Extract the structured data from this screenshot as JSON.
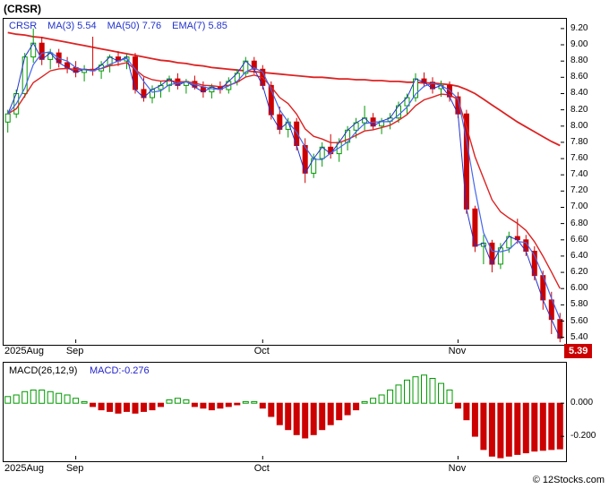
{
  "header": {
    "title": "(CRSR)"
  },
  "credit": "© 12Stocks.com",
  "price_panel": {
    "legend": [
      {
        "label": "CRSR",
        "value": "",
        "color": "#2233cc"
      },
      {
        "label": "MA(3)",
        "value": "5.54",
        "color": "#2233cc"
      },
      {
        "label": "MA(50)",
        "value": "7.76",
        "color": "#2233cc"
      },
      {
        "label": "EMA(7)",
        "value": "5.85",
        "color": "#2233cc"
      }
    ],
    "last_price_badge": "5.39",
    "y_ticks": [
      "9.20",
      "9.00",
      "8.80",
      "8.60",
      "8.40",
      "8.20",
      "8.00",
      "7.80",
      "7.60",
      "7.40",
      "7.20",
      "7.00",
      "6.80",
      "6.60",
      "6.40",
      "6.20",
      "6.00",
      "5.80",
      "5.60",
      "5.40"
    ]
  },
  "macd_panel": {
    "title": "MACD(26,12,9)",
    "value": "MACD:-0.276",
    "y_ticks": [
      "0.000",
      "-0.200"
    ]
  },
  "chart_data": {
    "type": "candlestick_with_macd",
    "symbol": "CRSR",
    "title": "(CRSR)",
    "x_period": "Aug 2025 – Nov 2025",
    "price_range": [
      5.33,
      9.32
    ],
    "macd_range": [
      -0.34,
      0.245
    ],
    "grid": false,
    "colors": {
      "up": "#009900",
      "down": "#cc0000",
      "price": "#2233cc",
      "ma3": "#4466ee",
      "ma50": "#dd2222",
      "ema7": "#dd2222",
      "badge_bg": "#cc0000",
      "badge_text": "#ffffff"
    },
    "months": [
      {
        "label": "2025Aug",
        "index": 0
      },
      {
        "label": "Sep",
        "index": 8
      },
      {
        "label": "Oct",
        "index": 30
      },
      {
        "label": "Nov",
        "index": 53
      }
    ],
    "candles": [
      [
        8.05,
        8.2,
        7.92,
        8.15
      ],
      [
        8.15,
        8.45,
        8.1,
        8.4
      ],
      [
        8.4,
        8.9,
        8.35,
        8.85
      ],
      [
        8.85,
        9.2,
        8.78,
        9.02
      ],
      [
        9.02,
        9.1,
        8.75,
        8.82
      ],
      [
        8.82,
        8.95,
        8.7,
        8.9
      ],
      [
        8.9,
        8.95,
        8.72,
        8.78
      ],
      [
        8.78,
        8.85,
        8.65,
        8.72
      ],
      [
        8.72,
        8.8,
        8.6,
        8.66
      ],
      [
        8.66,
        8.75,
        8.55,
        8.7
      ],
      [
        8.7,
        9.1,
        8.62,
        8.68
      ],
      [
        8.68,
        8.8,
        8.58,
        8.75
      ],
      [
        8.75,
        8.88,
        8.66,
        8.85
      ],
      [
        8.85,
        8.92,
        8.74,
        8.8
      ],
      [
        8.8,
        8.88,
        8.7,
        8.85
      ],
      [
        8.85,
        8.9,
        8.4,
        8.45
      ],
      [
        8.45,
        8.6,
        8.3,
        8.35
      ],
      [
        8.35,
        8.5,
        8.28,
        8.45
      ],
      [
        8.45,
        8.55,
        8.35,
        8.5
      ],
      [
        8.5,
        8.62,
        8.42,
        8.58
      ],
      [
        8.58,
        8.65,
        8.45,
        8.5
      ],
      [
        8.5,
        8.58,
        8.4,
        8.55
      ],
      [
        8.55,
        8.62,
        8.45,
        8.48
      ],
      [
        8.48,
        8.55,
        8.35,
        8.42
      ],
      [
        8.42,
        8.52,
        8.34,
        8.48
      ],
      [
        8.48,
        8.55,
        8.4,
        8.45
      ],
      [
        8.45,
        8.6,
        8.4,
        8.55
      ],
      [
        8.55,
        8.7,
        8.5,
        8.65
      ],
      [
        8.65,
        8.85,
        8.6,
        8.8
      ],
      [
        8.8,
        8.85,
        8.64,
        8.7
      ],
      [
        8.7,
        8.75,
        8.45,
        8.5
      ],
      [
        8.5,
        8.55,
        8.08,
        8.14
      ],
      [
        8.14,
        8.24,
        7.9,
        7.96
      ],
      [
        7.96,
        8.1,
        7.86,
        8.05
      ],
      [
        8.05,
        8.1,
        7.7,
        7.76
      ],
      [
        7.76,
        7.85,
        7.3,
        7.42
      ],
      [
        7.42,
        7.66,
        7.36,
        7.6
      ],
      [
        7.6,
        7.8,
        7.5,
        7.74
      ],
      [
        7.74,
        7.9,
        7.6,
        7.66
      ],
      [
        7.66,
        7.85,
        7.56,
        7.8
      ],
      [
        7.8,
        8.0,
        7.7,
        7.95
      ],
      [
        7.95,
        8.1,
        7.85,
        8.04
      ],
      [
        8.04,
        8.25,
        7.95,
        8.1
      ],
      [
        8.1,
        8.16,
        7.96,
        8.0
      ],
      [
        8.0,
        8.1,
        7.9,
        8.06
      ],
      [
        8.06,
        8.16,
        7.96,
        8.1
      ],
      [
        8.1,
        8.3,
        8.04,
        8.25
      ],
      [
        8.25,
        8.4,
        8.15,
        8.35
      ],
      [
        8.35,
        8.65,
        8.3,
        8.58
      ],
      [
        8.58,
        8.66,
        8.48,
        8.54
      ],
      [
        8.54,
        8.6,
        8.4,
        8.46
      ],
      [
        8.46,
        8.56,
        8.36,
        8.5
      ],
      [
        8.5,
        8.55,
        8.3,
        8.36
      ],
      [
        8.36,
        8.42,
        8.1,
        8.15
      ],
      [
        8.15,
        8.2,
        6.92,
        6.98
      ],
      [
        6.98,
        7.02,
        6.45,
        6.52
      ],
      [
        6.52,
        6.66,
        6.3,
        6.56
      ],
      [
        6.56,
        6.6,
        6.2,
        6.3
      ],
      [
        6.3,
        6.56,
        6.24,
        6.5
      ],
      [
        6.5,
        6.7,
        6.44,
        6.64
      ],
      [
        6.64,
        6.86,
        6.55,
        6.6
      ],
      [
        6.6,
        6.66,
        6.4,
        6.46
      ],
      [
        6.46,
        6.52,
        6.1,
        6.16
      ],
      [
        6.16,
        6.22,
        5.74,
        5.86
      ],
      [
        5.86,
        5.96,
        5.44,
        5.62
      ],
      [
        5.62,
        5.7,
        5.34,
        5.39
      ]
    ],
    "ma50": [
      9.15,
      9.13,
      9.12,
      9.1,
      9.09,
      9.07,
      9.05,
      9.03,
      9.01,
      8.99,
      8.97,
      8.95,
      8.93,
      8.91,
      8.89,
      8.87,
      8.85,
      8.83,
      8.81,
      8.8,
      8.78,
      8.77,
      8.75,
      8.74,
      8.72,
      8.71,
      8.7,
      8.69,
      8.68,
      8.67,
      8.66,
      8.65,
      8.64,
      8.63,
      8.62,
      8.61,
      8.6,
      8.6,
      8.59,
      8.58,
      8.58,
      8.57,
      8.57,
      8.56,
      8.56,
      8.55,
      8.55,
      8.54,
      8.54,
      8.53,
      8.53,
      8.52,
      8.51,
      8.49,
      8.45,
      8.4,
      8.33,
      8.26,
      8.19,
      8.12,
      8.05,
      7.99,
      7.93,
      7.87,
      7.81,
      7.76
    ],
    "macd_hist": [
      0.04,
      0.05,
      0.07,
      0.08,
      0.08,
      0.07,
      0.06,
      0.05,
      0.03,
      0.01,
      -0.02,
      -0.04,
      -0.05,
      -0.06,
      -0.05,
      -0.06,
      -0.05,
      -0.04,
      -0.02,
      0.02,
      0.03,
      0.02,
      -0.02,
      -0.03,
      -0.04,
      -0.03,
      -0.02,
      -0.01,
      0.01,
      0.01,
      -0.03,
      -0.08,
      -0.13,
      -0.16,
      -0.19,
      -0.21,
      -0.19,
      -0.16,
      -0.13,
      -0.1,
      -0.07,
      -0.04,
      0.01,
      0.03,
      0.05,
      0.08,
      0.11,
      0.14,
      0.16,
      0.17,
      0.15,
      0.12,
      0.08,
      -0.03,
      -0.1,
      -0.2,
      -0.28,
      -0.32,
      -0.33,
      -0.32,
      -0.31,
      -0.3,
      -0.29,
      -0.285,
      -0.28,
      -0.276
    ]
  }
}
